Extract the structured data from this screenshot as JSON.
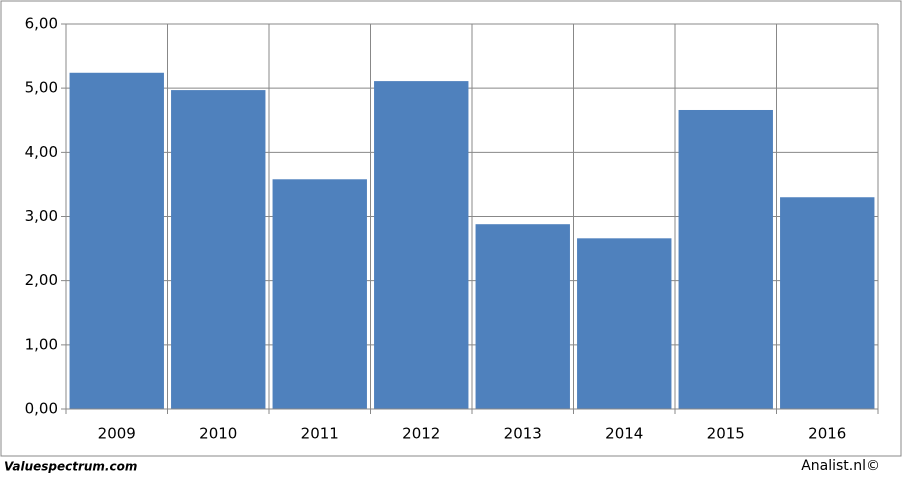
{
  "chart_data": {
    "type": "bar",
    "categories": [
      "2009",
      "2010",
      "2011",
      "2012",
      "2013",
      "2014",
      "2015",
      "2016"
    ],
    "values": [
      5.24,
      4.97,
      3.58,
      5.11,
      2.88,
      2.66,
      4.66,
      3.3
    ],
    "color": "#4f81bd",
    "ylim": [
      0,
      6
    ],
    "yticks": [
      {
        "value": 0,
        "label": "0,00"
      },
      {
        "value": 1,
        "label": "1,00"
      },
      {
        "value": 2,
        "label": "2,00"
      },
      {
        "value": 3,
        "label": "3,00"
      },
      {
        "value": 4,
        "label": "4,00"
      },
      {
        "value": 5,
        "label": "5,00"
      },
      {
        "value": 6,
        "label": "6,00"
      }
    ],
    "grid": true,
    "source_left": "Valuespectrum.com",
    "source_right": "Analist.nl©"
  }
}
